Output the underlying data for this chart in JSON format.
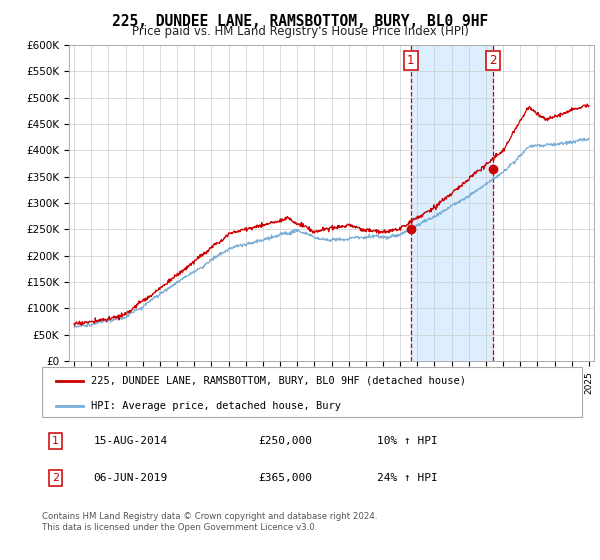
{
  "title": "225, DUNDEE LANE, RAMSBOTTOM, BURY, BL0 9HF",
  "subtitle": "Price paid vs. HM Land Registry's House Price Index (HPI)",
  "ylim": [
    0,
    600000
  ],
  "yticks": [
    0,
    50000,
    100000,
    150000,
    200000,
    250000,
    300000,
    350000,
    400000,
    450000,
    500000,
    550000,
    600000
  ],
  "ytick_labels": [
    "£0",
    "£50K",
    "£100K",
    "£150K",
    "£200K",
    "£250K",
    "£300K",
    "£350K",
    "£400K",
    "£450K",
    "£500K",
    "£550K",
    "£600K"
  ],
  "x_start_year": 1995,
  "x_end_year": 2025,
  "sale1_date": 2014.62,
  "sale1_price": 250000,
  "sale2_date": 2019.43,
  "sale2_price": 365000,
  "red_color": "#cc0000",
  "blue_color": "#7aaed6",
  "shaded_color": "#ddeeff",
  "legend1": "225, DUNDEE LANE, RAMSBOTTOM, BURY, BL0 9HF (detached house)",
  "legend2": "HPI: Average price, detached house, Bury",
  "table_row1_num": "1",
  "table_row1_date": "15-AUG-2014",
  "table_row1_price": "£250,000",
  "table_row1_hpi": "10% ↑ HPI",
  "table_row2_num": "2",
  "table_row2_date": "06-JUN-2019",
  "table_row2_price": "£365,000",
  "table_row2_hpi": "24% ↑ HPI",
  "footer": "Contains HM Land Registry data © Crown copyright and database right 2024.\nThis data is licensed under the Open Government Licence v3.0."
}
